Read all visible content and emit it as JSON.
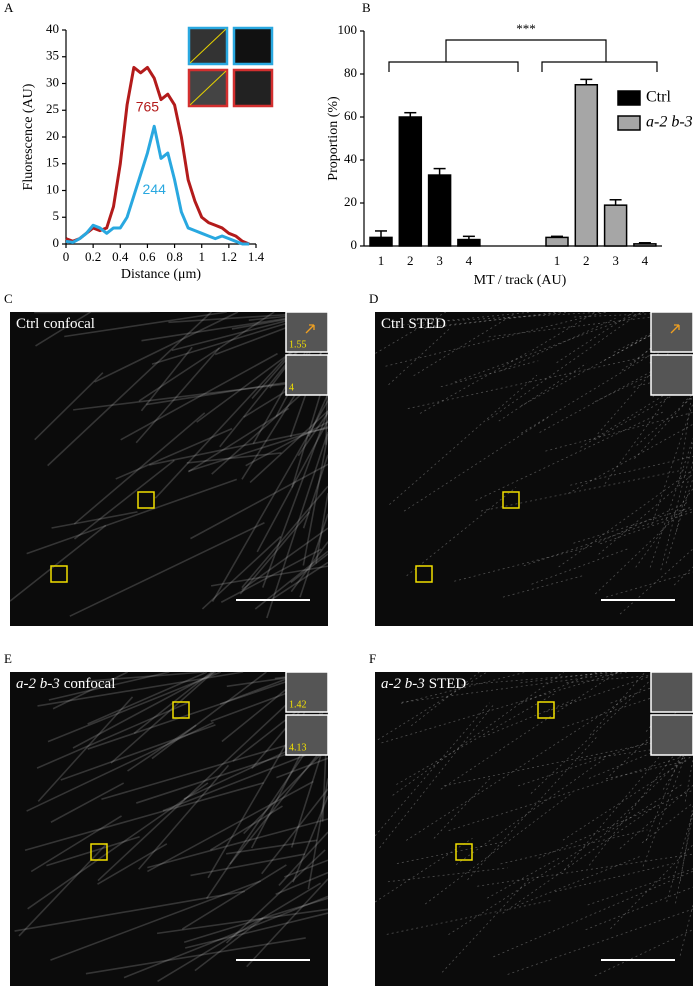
{
  "chart_data": [
    {
      "type": "line",
      "panel": "A",
      "xlabel": "Distance (μm)",
      "ylabel": "Fluorescence (AU)",
      "x": [
        0,
        0.05,
        0.1,
        0.15,
        0.2,
        0.25,
        0.3,
        0.35,
        0.4,
        0.45,
        0.5,
        0.55,
        0.6,
        0.65,
        0.7,
        0.75,
        0.8,
        0.85,
        0.9,
        0.95,
        1.0,
        1.05,
        1.1,
        1.15,
        1.2,
        1.25,
        1.3,
        1.35
      ],
      "series": [
        {
          "name": "765",
          "color": "#b31b1b",
          "values": [
            1,
            0.5,
            1,
            2,
            3,
            2.5,
            3,
            7,
            15,
            26,
            33,
            32,
            33,
            31,
            27,
            28,
            26,
            20,
            12,
            8,
            5,
            4,
            3.5,
            3,
            2,
            1.5,
            0.5,
            0
          ]
        },
        {
          "name": "244",
          "color": "#29a8e0",
          "values": [
            0.5,
            0.3,
            1,
            2,
            3.5,
            3,
            2,
            3,
            3,
            5,
            9,
            13,
            17,
            22,
            16,
            17,
            12,
            6,
            3,
            2.5,
            2,
            1.5,
            1,
            1.5,
            1,
            0.5,
            0,
            0
          ]
        }
      ],
      "xlim": [
        0,
        1.4
      ],
      "xticks": [
        0,
        0.2,
        0.4,
        0.6,
        0.8,
        1,
        1.2,
        1.4
      ],
      "ylim": [
        0,
        40
      ],
      "yticks": [
        0,
        5,
        10,
        15,
        20,
        25,
        30,
        35,
        40
      ]
    },
    {
      "type": "bar",
      "panel": "B",
      "xlabel": "MT / track (AU)",
      "ylabel": "Proportion (%)",
      "significance": "***",
      "categories": [
        "1",
        "2",
        "3",
        "4"
      ],
      "series": [
        {
          "name": "Ctrl",
          "color": "#000000",
          "italic": false,
          "values": [
            4,
            60,
            33,
            3
          ],
          "errors": [
            3,
            2,
            3,
            1.5
          ]
        },
        {
          "name": "a-2 b-3",
          "color": "#a6a6a6",
          "italic": true,
          "values": [
            4,
            75,
            19,
            1
          ],
          "errors": [
            0.5,
            2.5,
            2.5,
            0.5
          ]
        }
      ],
      "ylim": [
        0,
        100
      ],
      "yticks": [
        0,
        20,
        40,
        60,
        80,
        100
      ],
      "legend": "right"
    }
  ],
  "panels": [
    {
      "letter": "C",
      "name": "Ctrl",
      "italic_name": false,
      "mode": "confocal",
      "insets": [
        "1.55",
        "4"
      ]
    },
    {
      "letter": "D",
      "name": "Ctrl",
      "italic_name": false,
      "mode": "STED",
      "insets": []
    },
    {
      "letter": "E",
      "name": "a-2 b-3",
      "italic_name": true,
      "mode": "confocal",
      "insets": [
        "1.42",
        "4.13"
      ]
    },
    {
      "letter": "F",
      "name": "a-2 b-3",
      "italic_name": true,
      "mode": "STED",
      "insets": []
    }
  ]
}
